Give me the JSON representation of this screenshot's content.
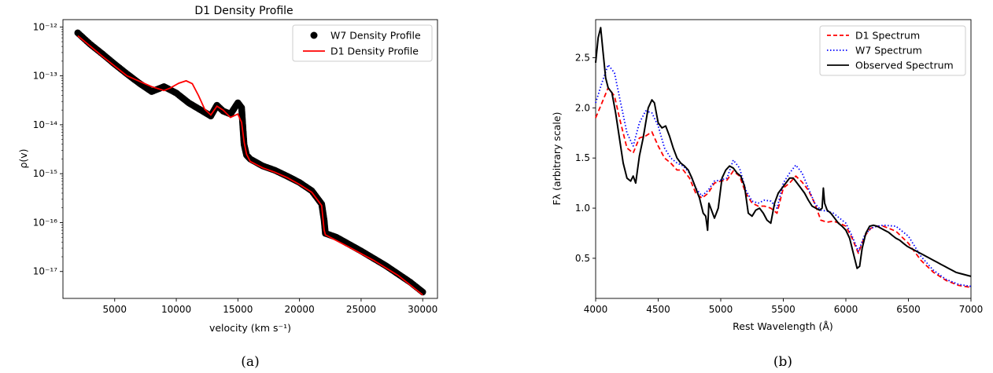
{
  "chart_data": [
    {
      "type": "scatter",
      "title": "D1 Density Profile",
      "xlabel": "velocity (km s⁻¹)",
      "ylabel": "ρ(v)",
      "caption": "(a)",
      "xlim": [
        800,
        31200
      ],
      "ylim_log10": [
        -17.55,
        -11.85
      ],
      "yscale": "log",
      "x_ticks": [
        5000,
        10000,
        15000,
        20000,
        25000,
        30000
      ],
      "x_tick_labels": [
        "5000",
        "10000",
        "15000",
        "20000",
        "25000",
        "30000"
      ],
      "y_ticks_log10": [
        -17,
        -16,
        -15,
        -14,
        -13,
        -12
      ],
      "y_tick_labels": [
        "10⁻¹⁷",
        "10⁻¹⁶",
        "10⁻¹⁵",
        "10⁻¹⁴",
        "10⁻¹³",
        "10⁻¹²"
      ],
      "legend_position": "top-right",
      "series": [
        {
          "name": "W7 Density Profile",
          "kind": "markers",
          "color": "#000000",
          "points_log10": [
            [
              2000,
              -12.12
            ],
            [
              3000,
              -12.35
            ],
            [
              4000,
              -12.55
            ],
            [
              5000,
              -12.76
            ],
            [
              6000,
              -12.96
            ],
            [
              7000,
              -13.15
            ],
            [
              8000,
              -13.32
            ],
            [
              9000,
              -13.22
            ],
            [
              10000,
              -13.35
            ],
            [
              11000,
              -13.55
            ],
            [
              12000,
              -13.7
            ],
            [
              12800,
              -13.82
            ],
            [
              13300,
              -13.6
            ],
            [
              13800,
              -13.72
            ],
            [
              14400,
              -13.78
            ],
            [
              15000,
              -13.55
            ],
            [
              15300,
              -13.65
            ],
            [
              15500,
              -14.4
            ],
            [
              15700,
              -14.62
            ],
            [
              16000,
              -14.7
            ],
            [
              17000,
              -14.84
            ],
            [
              18000,
              -14.93
            ],
            [
              19000,
              -15.05
            ],
            [
              20000,
              -15.18
            ],
            [
              21000,
              -15.35
            ],
            [
              21800,
              -15.62
            ],
            [
              22000,
              -15.95
            ],
            [
              22100,
              -16.22
            ],
            [
              23000,
              -16.3
            ],
            [
              24000,
              -16.44
            ],
            [
              25000,
              -16.58
            ],
            [
              26000,
              -16.73
            ],
            [
              27000,
              -16.88
            ],
            [
              28000,
              -17.05
            ],
            [
              29000,
              -17.22
            ],
            [
              30000,
              -17.42
            ]
          ]
        },
        {
          "name": "D1 Density Profile",
          "kind": "line",
          "color": "#ff0000",
          "points_log10": [
            [
              2000,
              -12.18
            ],
            [
              4000,
              -12.6
            ],
            [
              6000,
              -13.0
            ],
            [
              8000,
              -13.22
            ],
            [
              9000,
              -13.3
            ],
            [
              9500,
              -13.25
            ],
            [
              10200,
              -13.15
            ],
            [
              10800,
              -13.1
            ],
            [
              11300,
              -13.16
            ],
            [
              11800,
              -13.4
            ],
            [
              12300,
              -13.68
            ],
            [
              12800,
              -13.8
            ],
            [
              13300,
              -13.62
            ],
            [
              13800,
              -13.7
            ],
            [
              14400,
              -13.85
            ],
            [
              15000,
              -13.78
            ],
            [
              15300,
              -13.95
            ],
            [
              15500,
              -14.35
            ],
            [
              15700,
              -14.6
            ],
            [
              16000,
              -14.75
            ],
            [
              17000,
              -14.88
            ],
            [
              18000,
              -14.97
            ],
            [
              19000,
              -15.08
            ],
            [
              20000,
              -15.22
            ],
            [
              21000,
              -15.38
            ],
            [
              21800,
              -15.65
            ],
            [
              22000,
              -16.15
            ],
            [
              22100,
              -16.25
            ],
            [
              24000,
              -16.5
            ],
            [
              26000,
              -16.77
            ],
            [
              28000,
              -17.08
            ],
            [
              30000,
              -17.48
            ]
          ]
        }
      ]
    },
    {
      "type": "line",
      "title": "",
      "xlabel": "Rest Wavelength (Å)",
      "ylabel": "Fλ (arbitrary scale)",
      "caption": "(b)",
      "xlim": [
        4000,
        7000
      ],
      "ylim": [
        0.1,
        2.88
      ],
      "x_ticks": [
        4000,
        4500,
        5000,
        5500,
        6000,
        6500,
        7000
      ],
      "x_tick_labels": [
        "4000",
        "4500",
        "5000",
        "5500",
        "6000",
        "6500",
        "7000"
      ],
      "y_ticks": [
        0.5,
        1.0,
        1.5,
        2.0,
        2.5
      ],
      "y_tick_labels": [
        "0.5",
        "1.0",
        "1.5",
        "2.0",
        "2.5"
      ],
      "legend_position": "top-right",
      "series": [
        {
          "name": "D1 Spectrum",
          "style": "dashed",
          "color": "#ff0000",
          "x": [
            4000,
            4050,
            4100,
            4150,
            4200,
            4250,
            4300,
            4350,
            4400,
            4450,
            4500,
            4550,
            4600,
            4650,
            4700,
            4750,
            4800,
            4850,
            4900,
            4950,
            5000,
            5050,
            5100,
            5150,
            5200,
            5250,
            5300,
            5350,
            5400,
            5450,
            5500,
            5550,
            5600,
            5650,
            5700,
            5750,
            5800,
            5850,
            5900,
            5950,
            6000,
            6050,
            6100,
            6150,
            6200,
            6250,
            6300,
            6400,
            6500,
            6600,
            6700,
            6800,
            6900,
            7000
          ],
          "y": [
            1.9,
            2.05,
            2.2,
            2.12,
            1.85,
            1.6,
            1.55,
            1.7,
            1.72,
            1.76,
            1.62,
            1.5,
            1.45,
            1.38,
            1.38,
            1.3,
            1.15,
            1.1,
            1.15,
            1.25,
            1.27,
            1.28,
            1.37,
            1.32,
            1.15,
            1.05,
            1.02,
            1.02,
            1.0,
            0.95,
            1.2,
            1.25,
            1.32,
            1.26,
            1.18,
            1.05,
            0.88,
            0.86,
            0.87,
            0.85,
            0.82,
            0.7,
            0.55,
            0.72,
            0.8,
            0.82,
            0.82,
            0.77,
            0.65,
            0.48,
            0.36,
            0.28,
            0.23,
            0.21
          ]
        },
        {
          "name": "W7 Spectrum",
          "style": "dotted",
          "color": "#0000ff",
          "x": [
            4000,
            4050,
            4100,
            4150,
            4200,
            4250,
            4300,
            4350,
            4400,
            4450,
            4500,
            4550,
            4600,
            4650,
            4700,
            4750,
            4800,
            4850,
            4900,
            4950,
            5000,
            5050,
            5100,
            5150,
            5200,
            5250,
            5300,
            5350,
            5400,
            5450,
            5500,
            5550,
            5600,
            5650,
            5700,
            5750,
            5800,
            5850,
            5900,
            5950,
            6000,
            6050,
            6100,
            6150,
            6200,
            6250,
            6300,
            6400,
            6500,
            6600,
            6700,
            6800,
            6900,
            7000
          ],
          "y": [
            2.05,
            2.25,
            2.43,
            2.35,
            2.05,
            1.75,
            1.62,
            1.85,
            1.97,
            1.95,
            1.82,
            1.6,
            1.5,
            1.45,
            1.42,
            1.35,
            1.2,
            1.12,
            1.18,
            1.27,
            1.28,
            1.3,
            1.48,
            1.4,
            1.18,
            1.07,
            1.05,
            1.08,
            1.07,
            1.0,
            1.25,
            1.35,
            1.43,
            1.35,
            1.2,
            1.05,
            0.98,
            0.97,
            0.95,
            0.9,
            0.85,
            0.72,
            0.57,
            0.73,
            0.8,
            0.82,
            0.83,
            0.82,
            0.72,
            0.52,
            0.38,
            0.29,
            0.24,
            0.22
          ]
        },
        {
          "name": "Observed Spectrum",
          "style": "solid",
          "color": "#000000",
          "x": [
            4000,
            4020,
            4040,
            4060,
            4080,
            4100,
            4130,
            4160,
            4190,
            4220,
            4250,
            4280,
            4300,
            4320,
            4350,
            4380,
            4400,
            4420,
            4450,
            4470,
            4500,
            4530,
            4560,
            4590,
            4620,
            4650,
            4680,
            4710,
            4740,
            4770,
            4800,
            4830,
            4860,
            4880,
            4895,
            4905,
            4920,
            4950,
            4980,
            5010,
            5040,
            5070,
            5100,
            5130,
            5160,
            5190,
            5220,
            5250,
            5280,
            5310,
            5340,
            5370,
            5400,
            5430,
            5460,
            5490,
            5520,
            5550,
            5580,
            5610,
            5640,
            5670,
            5700,
            5730,
            5760,
            5790,
            5810,
            5820,
            5830,
            5850,
            5880,
            5910,
            5940,
            5970,
            6000,
            6030,
            6060,
            6090,
            6110,
            6130,
            6160,
            6190,
            6220,
            6250,
            6280,
            6310,
            6340,
            6370,
            6400,
            6430,
            6460,
            6490,
            6520,
            6550,
            6580,
            6610,
            6640,
            6670,
            6700,
            6730,
            6760,
            6790,
            6820,
            6850,
            6880,
            6910,
            6940,
            6970,
            7000
          ],
          "y": [
            2.45,
            2.7,
            2.8,
            2.55,
            2.3,
            2.2,
            2.15,
            1.95,
            1.7,
            1.45,
            1.3,
            1.27,
            1.32,
            1.25,
            1.52,
            1.7,
            1.85,
            2.0,
            2.08,
            2.05,
            1.85,
            1.8,
            1.82,
            1.72,
            1.6,
            1.5,
            1.45,
            1.42,
            1.38,
            1.3,
            1.2,
            1.1,
            0.95,
            0.92,
            0.78,
            1.05,
            1.0,
            0.9,
            1.0,
            1.3,
            1.38,
            1.42,
            1.4,
            1.35,
            1.32,
            1.22,
            0.95,
            0.92,
            0.98,
            1.0,
            0.95,
            0.88,
            0.85,
            1.05,
            1.15,
            1.2,
            1.25,
            1.3,
            1.3,
            1.25,
            1.2,
            1.15,
            1.08,
            1.02,
            1.0,
            0.98,
            1.0,
            1.2,
            1.05,
            0.98,
            0.95,
            0.9,
            0.85,
            0.82,
            0.78,
            0.7,
            0.55,
            0.4,
            0.42,
            0.6,
            0.75,
            0.82,
            0.83,
            0.82,
            0.8,
            0.78,
            0.76,
            0.73,
            0.7,
            0.68,
            0.65,
            0.62,
            0.6,
            0.58,
            0.56,
            0.54,
            0.52,
            0.5,
            0.48,
            0.46,
            0.44,
            0.42,
            0.4,
            0.38,
            0.36,
            0.35,
            0.34,
            0.33,
            0.32
          ]
        }
      ]
    }
  ]
}
